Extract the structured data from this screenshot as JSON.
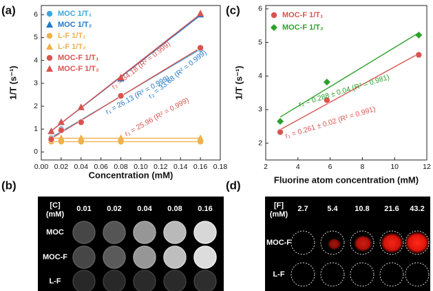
{
  "panel_labels": [
    "(a)",
    "(b)",
    "(c)",
    "(d)"
  ],
  "chart_data": [
    {
      "type": "scatter",
      "x_label": "Concentration (mM)",
      "y_label": "1/T (s⁻¹)",
      "x": [
        0.01,
        0.02,
        0.04,
        0.08,
        0.16
      ],
      "xlim": [
        0,
        0.18
      ],
      "ylim": [
        -0.35,
        6.4
      ],
      "xticks": [
        {
          "value": 0,
          "label": "0.00"
        },
        0.02,
        0.04,
        0.06,
        0.08,
        {
          "value": 0.1,
          "label": "0.10"
        },
        0.12,
        0.14,
        0.16,
        0.18
      ],
      "yticks": [
        0,
        1,
        2,
        3,
        4,
        5,
        6
      ],
      "series": [
        {
          "name": "MOC 1/T₁",
          "color": "#3aa6dc",
          "marker": "circle",
          "values": [
            0.6,
            1.0,
            1.3,
            2.45,
            4.5
          ]
        },
        {
          "name": "MOC 1/T₂",
          "color": "#1f78c8",
          "marker": "triangle",
          "values": [
            0.9,
            1.3,
            1.95,
            3.2,
            6.0
          ]
        },
        {
          "name": "L-F 1/T₁",
          "color": "#f0b04a",
          "marker": "circle",
          "values": [
            0.45,
            0.45,
            0.45,
            0.45,
            0.45
          ]
        },
        {
          "name": "L-F 1/T₂",
          "color": "#f0b04a",
          "marker": "triangle",
          "values": [
            0.6,
            0.6,
            0.6,
            0.6,
            0.6
          ]
        },
        {
          "name": "MOC-F 1/T₁",
          "color": "#d9534f",
          "marker": "circle",
          "values": [
            0.55,
            0.95,
            1.3,
            2.45,
            4.55
          ]
        },
        {
          "name": "MOC-F 1/T₂",
          "color": "#d9534f",
          "marker": "triangle",
          "values": [
            0.9,
            1.3,
            1.95,
            3.25,
            6.05
          ]
        }
      ],
      "annotations": [
        {
          "text": "r₂ = 34.18 (R² = 0.999)",
          "color": "#d9534f"
        },
        {
          "text": "r₂ = 33.68 (R² = 0.999)",
          "color": "#1f78c8"
        },
        {
          "text": "r₁ = 26.13 (R² = 0.999)",
          "color": "#1f78c8"
        },
        {
          "text": "r₁ = 25.96 (R² = 0.999)",
          "color": "#d9534f"
        }
      ]
    },
    {
      "type": "scatter",
      "x_label": "Fluorine atom concentration (mM)",
      "y_label": "1/T (s⁻¹)",
      "x": [
        2.9,
        5.8,
        11.5
      ],
      "xlim": [
        2,
        12
      ],
      "ylim": [
        1.5,
        6.1
      ],
      "xticks": [
        2,
        4,
        6,
        8,
        10,
        12
      ],
      "yticks": [
        2,
        3,
        4,
        5,
        6
      ],
      "series": [
        {
          "name": "MOC-F 1/T₁",
          "color": "#d9534f",
          "marker": "circle",
          "values": [
            2.33,
            3.28,
            4.63
          ]
        },
        {
          "name": "MOC-F 1/T₂",
          "color": "#2ca02c",
          "marker": "diamond",
          "values": [
            2.65,
            3.82,
            5.22
          ]
        }
      ],
      "annotations": [
        {
          "text": "r₂ = 0.288 ± 0.04 (R² = 0.981)",
          "color": "#2ca02c"
        },
        {
          "text": "r₁ = 0.261 ± 0.02 (R² = 0.991)",
          "color": "#d9534f"
        }
      ]
    }
  ],
  "images": [
    {
      "header": [
        "[C]",
        "(mM)"
      ],
      "columns": [
        "0.01",
        "0.02",
        "0.04",
        "0.08",
        "0.16"
      ],
      "rows": [
        "MOC",
        "MOC-F",
        "L-F"
      ]
    },
    {
      "header": [
        "[F]",
        "(mM)"
      ],
      "columns": [
        "2.7",
        "5.4",
        "10.8",
        "21.6",
        "43.2"
      ],
      "rows": [
        "MOC-F",
        "L-F"
      ]
    }
  ]
}
